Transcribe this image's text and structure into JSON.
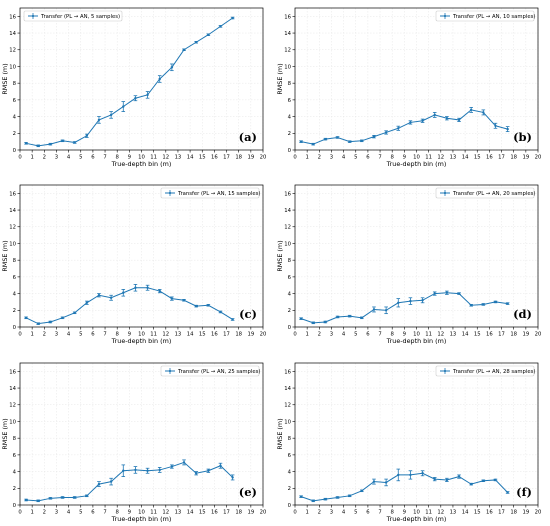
{
  "figure": {
    "colors": {
      "series": "#1f77b4",
      "axis": "#000000",
      "legend_border": "#cccccc"
    },
    "icons": [
      "errorbar-legend-icon"
    ]
  },
  "chart_data": [
    {
      "type": "line",
      "panel_label": "(a)",
      "legend": [
        "Transfer (PL → AN, 5 samples)"
      ],
      "legend_position": "top-left",
      "xlabel": "True-depth bin (m)",
      "ylabel": "RMSE (m)",
      "xlim": [
        0,
        20
      ],
      "ylim": [
        0,
        17
      ],
      "xticks": [
        "0",
        "1",
        "2",
        "3",
        "4",
        "5",
        "6",
        "7",
        "8",
        "9",
        "10",
        "11",
        "12",
        "13",
        "14",
        "15",
        "16",
        "17",
        "18",
        "19",
        "20"
      ],
      "yticks": [
        "0",
        "2",
        "4",
        "6",
        "8",
        "10",
        "12",
        "14",
        "16"
      ],
      "grid": true,
      "series": [
        {
          "name": "Transfer (PL → AN, 5 samples)",
          "x": [
            0.5,
            1.5,
            2.5,
            3.5,
            4.5,
            5.5,
            6.5,
            7.5,
            8.5,
            9.5,
            10.5,
            11.5,
            12.5,
            13.5,
            14.5,
            15.5,
            16.5,
            17.5
          ],
          "y": [
            0.8,
            0.5,
            0.7,
            1.1,
            0.9,
            1.7,
            3.6,
            4.2,
            5.2,
            6.2,
            6.6,
            8.5,
            9.9,
            12.0,
            12.9,
            13.8,
            14.8,
            15.8
          ],
          "err": [
            0.1,
            0.1,
            0.1,
            0.1,
            0.1,
            0.2,
            0.4,
            0.4,
            0.6,
            0.3,
            0.4,
            0.4,
            0.4,
            0.1,
            0.1,
            0.1,
            0.1,
            0.1
          ]
        }
      ]
    },
    {
      "type": "line",
      "panel_label": "(b)",
      "legend": [
        "Transfer (PL → AN, 10 samples)"
      ],
      "legend_position": "top-right",
      "xlabel": "True-depth bin (m)",
      "ylabel": "RMSE (m)",
      "xlim": [
        0,
        20
      ],
      "ylim": [
        0,
        17
      ],
      "xticks": [
        "0",
        "1",
        "2",
        "3",
        "4",
        "5",
        "6",
        "7",
        "8",
        "9",
        "10",
        "11",
        "12",
        "13",
        "14",
        "15",
        "16",
        "17",
        "18",
        "19",
        "20"
      ],
      "yticks": [
        "0",
        "2",
        "4",
        "6",
        "8",
        "10",
        "12",
        "14",
        "16"
      ],
      "grid": true,
      "series": [
        {
          "name": "Transfer (PL → AN, 10 samples)",
          "x": [
            0.5,
            1.5,
            2.5,
            3.5,
            4.5,
            5.5,
            6.5,
            7.5,
            8.5,
            9.5,
            10.5,
            11.5,
            12.5,
            13.5,
            14.5,
            15.5,
            16.5,
            17.5
          ],
          "y": [
            1.0,
            0.7,
            1.3,
            1.5,
            1.0,
            1.1,
            1.6,
            2.1,
            2.6,
            3.3,
            3.5,
            4.2,
            3.8,
            3.6,
            4.8,
            4.5,
            2.9,
            2.5
          ],
          "err": [
            0.1,
            0.1,
            0.1,
            0.1,
            0.1,
            0.1,
            0.15,
            0.2,
            0.25,
            0.2,
            0.2,
            0.3,
            0.2,
            0.2,
            0.3,
            0.3,
            0.3,
            0.3
          ]
        }
      ]
    },
    {
      "type": "line",
      "panel_label": "(c)",
      "legend": [
        "Transfer (PL → AN, 15 samples)"
      ],
      "legend_position": "top-right",
      "xlabel": "True-depth bin (m)",
      "ylabel": "RMSE (m)",
      "xlim": [
        0,
        20
      ],
      "ylim": [
        0,
        17
      ],
      "xticks": [
        "0",
        "1",
        "2",
        "3",
        "4",
        "5",
        "6",
        "7",
        "8",
        "9",
        "10",
        "11",
        "12",
        "13",
        "14",
        "15",
        "16",
        "17",
        "18",
        "19",
        "20"
      ],
      "yticks": [
        "0",
        "2",
        "4",
        "6",
        "8",
        "10",
        "12",
        "14",
        "16"
      ],
      "grid": true,
      "series": [
        {
          "name": "Transfer (PL → AN, 15 samples)",
          "x": [
            0.5,
            1.5,
            2.5,
            3.5,
            4.5,
            5.5,
            6.5,
            7.5,
            8.5,
            9.5,
            10.5,
            11.5,
            12.5,
            13.5,
            14.5,
            15.5,
            16.5,
            17.5
          ],
          "y": [
            1.1,
            0.4,
            0.6,
            1.1,
            1.7,
            2.9,
            3.8,
            3.5,
            4.1,
            4.7,
            4.7,
            4.3,
            3.4,
            3.2,
            2.5,
            2.6,
            1.8,
            0.9
          ],
          "err": [
            0.1,
            0.1,
            0.1,
            0.1,
            0.1,
            0.2,
            0.2,
            0.3,
            0.4,
            0.4,
            0.3,
            0.2,
            0.2,
            0.1,
            0.1,
            0.1,
            0.1,
            0.1
          ]
        }
      ]
    },
    {
      "type": "line",
      "panel_label": "(d)",
      "legend": [
        "Transfer (PL → AN, 20 samples)"
      ],
      "legend_position": "top-right",
      "xlabel": "True-depth bin (m)",
      "ylabel": "RMSE (m)",
      "xlim": [
        0,
        20
      ],
      "ylim": [
        0,
        17
      ],
      "xticks": [
        "0",
        "1",
        "2",
        "3",
        "4",
        "5",
        "6",
        "7",
        "8",
        "9",
        "10",
        "11",
        "12",
        "13",
        "14",
        "15",
        "16",
        "17",
        "18",
        "19",
        "20"
      ],
      "yticks": [
        "0",
        "2",
        "4",
        "6",
        "8",
        "10",
        "12",
        "14",
        "16"
      ],
      "grid": true,
      "series": [
        {
          "name": "Transfer (PL → AN, 20 samples)",
          "x": [
            0.5,
            1.5,
            2.5,
            3.5,
            4.5,
            5.5,
            6.5,
            7.5,
            8.5,
            9.5,
            10.5,
            11.5,
            12.5,
            13.5,
            14.5,
            15.5,
            16.5,
            17.5
          ],
          "y": [
            1.0,
            0.5,
            0.6,
            1.2,
            1.3,
            1.1,
            2.1,
            2.0,
            2.9,
            3.1,
            3.2,
            4.0,
            4.1,
            4.0,
            2.6,
            2.7,
            3.0,
            2.8
          ],
          "err": [
            0.1,
            0.1,
            0.1,
            0.1,
            0.1,
            0.1,
            0.3,
            0.4,
            0.5,
            0.4,
            0.3,
            0.2,
            0.2,
            0.1,
            0.1,
            0.1,
            0.1,
            0.1
          ]
        }
      ]
    },
    {
      "type": "line",
      "panel_label": "(e)",
      "legend": [
        "Transfer (PL → AN, 25 samples)"
      ],
      "legend_position": "top-right",
      "xlabel": "True-depth bin (m)",
      "ylabel": "RMSE (m)",
      "xlim": [
        0,
        20
      ],
      "ylim": [
        0,
        17
      ],
      "xticks": [
        "0",
        "1",
        "2",
        "3",
        "4",
        "5",
        "6",
        "7",
        "8",
        "9",
        "10",
        "11",
        "12",
        "13",
        "14",
        "15",
        "16",
        "17",
        "18",
        "19",
        "20"
      ],
      "yticks": [
        "0",
        "2",
        "4",
        "6",
        "8",
        "10",
        "12",
        "14",
        "16"
      ],
      "grid": true,
      "series": [
        {
          "name": "Transfer (PL → AN, 25 samples)",
          "x": [
            0.5,
            1.5,
            2.5,
            3.5,
            4.5,
            5.5,
            6.5,
            7.5,
            8.5,
            9.5,
            10.5,
            11.5,
            12.5,
            13.5,
            14.5,
            15.5,
            16.5,
            17.5
          ],
          "y": [
            0.6,
            0.5,
            0.8,
            0.9,
            0.9,
            1.1,
            2.5,
            2.8,
            4.1,
            4.2,
            4.1,
            4.2,
            4.6,
            5.1,
            3.8,
            4.1,
            4.7,
            3.3
          ],
          "err": [
            0.1,
            0.1,
            0.1,
            0.1,
            0.1,
            0.1,
            0.3,
            0.4,
            0.7,
            0.4,
            0.3,
            0.3,
            0.2,
            0.3,
            0.2,
            0.2,
            0.3,
            0.3
          ]
        }
      ]
    },
    {
      "type": "line",
      "panel_label": "(f)",
      "legend": [
        "Transfer (PL → AN, 28 samples)"
      ],
      "legend_position": "top-right",
      "xlabel": "True-depth bin (m)",
      "ylabel": "RMSE (m)",
      "xlim": [
        0,
        20
      ],
      "ylim": [
        0,
        17
      ],
      "xticks": [
        "0",
        "1",
        "2",
        "3",
        "4",
        "5",
        "6",
        "7",
        "8",
        "9",
        "10",
        "11",
        "12",
        "13",
        "14",
        "15",
        "16",
        "17",
        "18",
        "19",
        "20"
      ],
      "yticks": [
        "0",
        "2",
        "4",
        "6",
        "8",
        "10",
        "12",
        "14",
        "16"
      ],
      "grid": true,
      "series": [
        {
          "name": "Transfer (PL → AN, 28 samples)",
          "x": [
            0.5,
            1.5,
            2.5,
            3.5,
            4.5,
            5.5,
            6.5,
            7.5,
            8.5,
            9.5,
            10.5,
            11.5,
            12.5,
            13.5,
            14.5,
            15.5,
            16.5,
            17.5
          ],
          "y": [
            1.0,
            0.5,
            0.7,
            0.9,
            1.1,
            1.7,
            2.8,
            2.7,
            3.6,
            3.6,
            3.8,
            3.1,
            3.0,
            3.4,
            2.5,
            2.9,
            3.0,
            1.5
          ],
          "err": [
            0.1,
            0.1,
            0.1,
            0.1,
            0.1,
            0.1,
            0.3,
            0.4,
            0.7,
            0.5,
            0.3,
            0.2,
            0.2,
            0.2,
            0.1,
            0.1,
            0.1,
            0.1
          ]
        }
      ]
    }
  ]
}
